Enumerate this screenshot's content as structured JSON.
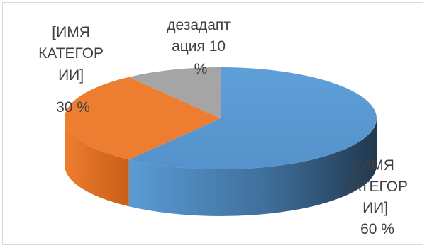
{
  "chart_data": {
    "type": "pie",
    "style": "3d",
    "slices": [
      {
        "label_lines": [
          "[ИМЯ",
          "КАТЕГОР",
          "ИИ]",
          "60 %"
        ],
        "value": 60,
        "color": "#5b9bd5"
      },
      {
        "label_lines": [
          "[ИМЯ",
          "КАТЕГОР",
          "ИИ]",
          "30 %"
        ],
        "value": 30,
        "color": "#ed7d31"
      },
      {
        "label_lines": [
          "дезадапт",
          "ация 10",
          "%"
        ],
        "value": 10,
        "color": "#a5a5a5"
      }
    ]
  }
}
